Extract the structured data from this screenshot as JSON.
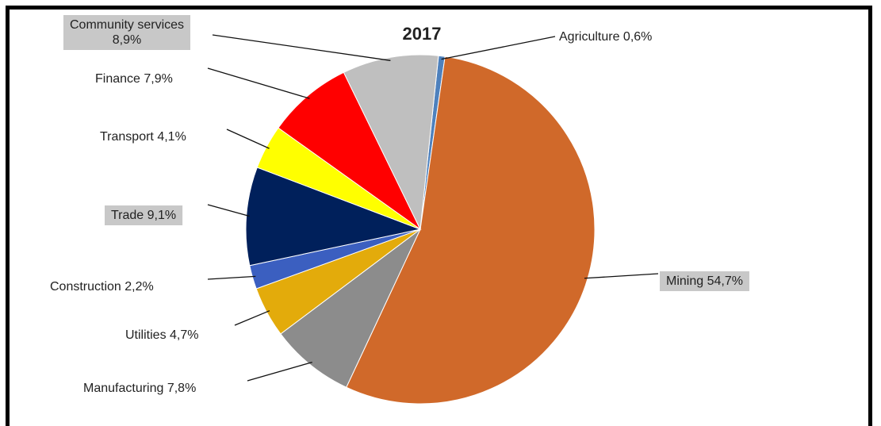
{
  "chart_data": {
    "type": "pie",
    "title": "2017",
    "slices": [
      {
        "label": "Agriculture 0,6%",
        "value": 0.6,
        "color": "#4e81bd"
      },
      {
        "label": "Mining 54,7%",
        "value": 54.7,
        "color": "#d0692a"
      },
      {
        "label": "Manufacturing 7,8%",
        "value": 7.8,
        "color": "#8c8c8c"
      },
      {
        "label": "Utilities 4,7%",
        "value": 4.7,
        "color": "#e3ab0b"
      },
      {
        "label": "Construction 2,2%",
        "value": 2.2,
        "color": "#3b5fc0"
      },
      {
        "label": "Trade 9,1%",
        "value": 9.1,
        "color": "#00205b"
      },
      {
        "label": "Transport 4,1%",
        "value": 4.1,
        "color": "#ffff00"
      },
      {
        "label": "Finance 7,9%",
        "value": 7.9,
        "color": "#ff0000"
      },
      {
        "label": "Community services 8,9%",
        "label_lines": [
          "Community services",
          "8,9%"
        ],
        "value": 8.9,
        "color": "#bfbfbf"
      }
    ]
  }
}
